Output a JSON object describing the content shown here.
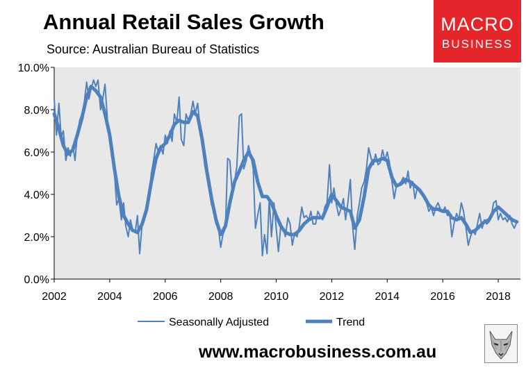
{
  "header": {
    "title": "Annual Retail Sales Growth",
    "subtitle": "Source: Australian Bureau of Statistics"
  },
  "logo": {
    "line1": "MACRO",
    "line2": "BUSINESS",
    "color": "#e4262b"
  },
  "footer": {
    "url": "www.macrobusiness.com.au",
    "emblem_icon": "wolf-icon"
  },
  "chart_data": {
    "type": "line",
    "title": "Annual Retail Sales Growth",
    "xlabel": "",
    "ylabel": "",
    "xlim": [
      2002,
      2018.8
    ],
    "ylim": [
      0,
      10
    ],
    "x_ticks": [
      "2002",
      "2004",
      "2006",
      "2008",
      "2010",
      "2012",
      "2014",
      "2016",
      "2018"
    ],
    "y_ticks": [
      "0.0%",
      "2.0%",
      "4.0%",
      "6.0%",
      "8.0%",
      "10.0%"
    ],
    "grid": false,
    "plot_background": "#e8e8e8",
    "legend": "bottom",
    "series": [
      {
        "name": "Seasonally Adjusted",
        "color": "#4f81bd",
        "line": "thin",
        "points": [
          [
            2002.0,
            8.5
          ],
          [
            2002.08,
            6.8
          ],
          [
            2002.17,
            8.3
          ],
          [
            2002.25,
            6.7
          ],
          [
            2002.33,
            7.0
          ],
          [
            2002.42,
            5.6
          ],
          [
            2002.5,
            6.2
          ],
          [
            2002.58,
            5.8
          ],
          [
            2002.67,
            6.3
          ],
          [
            2002.75,
            5.6
          ],
          [
            2002.83,
            6.8
          ],
          [
            2002.92,
            7.5
          ],
          [
            2003.0,
            7.8
          ],
          [
            2003.08,
            8.3
          ],
          [
            2003.17,
            9.3
          ],
          [
            2003.25,
            8.5
          ],
          [
            2003.33,
            9.0
          ],
          [
            2003.42,
            9.4
          ],
          [
            2003.5,
            9.1
          ],
          [
            2003.58,
            9.4
          ],
          [
            2003.67,
            8.0
          ],
          [
            2003.75,
            8.5
          ],
          [
            2003.83,
            9.2
          ],
          [
            2003.92,
            7.5
          ],
          [
            2004.0,
            7.0
          ],
          [
            2004.08,
            6.0
          ],
          [
            2004.17,
            5.0
          ],
          [
            2004.25,
            3.5
          ],
          [
            2004.33,
            3.8
          ],
          [
            2004.42,
            2.8
          ],
          [
            2004.5,
            3.6
          ],
          [
            2004.58,
            2.5
          ],
          [
            2004.67,
            2.0
          ],
          [
            2004.75,
            2.8
          ],
          [
            2004.83,
            2.3
          ],
          [
            2004.92,
            2.2
          ],
          [
            2005.0,
            3.0
          ],
          [
            2005.08,
            1.2
          ],
          [
            2005.17,
            2.6
          ],
          [
            2005.25,
            3.0
          ],
          [
            2005.33,
            3.2
          ],
          [
            2005.42,
            4.0
          ],
          [
            2005.5,
            5.0
          ],
          [
            2005.58,
            5.6
          ],
          [
            2005.67,
            6.4
          ],
          [
            2005.75,
            6.0
          ],
          [
            2005.83,
            6.3
          ],
          [
            2005.92,
            5.9
          ],
          [
            2006.0,
            6.8
          ],
          [
            2006.08,
            6.4
          ],
          [
            2006.17,
            7.0
          ],
          [
            2006.25,
            6.5
          ],
          [
            2006.33,
            7.8
          ],
          [
            2006.42,
            7.4
          ],
          [
            2006.5,
            8.6
          ],
          [
            2006.58,
            6.6
          ],
          [
            2006.67,
            6.3
          ],
          [
            2006.75,
            7.8
          ],
          [
            2006.83,
            7.5
          ],
          [
            2006.92,
            7.8
          ],
          [
            2007.0,
            8.4
          ],
          [
            2007.08,
            7.8
          ],
          [
            2007.17,
            8.3
          ],
          [
            2007.25,
            7.2
          ],
          [
            2007.33,
            6.6
          ],
          [
            2007.42,
            5.4
          ],
          [
            2007.5,
            4.8
          ],
          [
            2007.58,
            4.2
          ],
          [
            2007.67,
            3.5
          ],
          [
            2007.75,
            3.3
          ],
          [
            2007.83,
            2.6
          ],
          [
            2007.92,
            2.4
          ],
          [
            2008.0,
            1.5
          ],
          [
            2008.08,
            2.1
          ],
          [
            2008.17,
            2.4
          ],
          [
            2008.25,
            5.7
          ],
          [
            2008.33,
            5.6
          ],
          [
            2008.42,
            4.0
          ],
          [
            2008.5,
            4.6
          ],
          [
            2008.58,
            5.3
          ],
          [
            2008.67,
            7.7
          ],
          [
            2008.75,
            7.8
          ],
          [
            2008.83,
            5.2
          ],
          [
            2008.92,
            5.6
          ],
          [
            2009.0,
            6.3
          ],
          [
            2009.08,
            5.9
          ],
          [
            2009.17,
            5.2
          ],
          [
            2009.25,
            2.4
          ],
          [
            2009.33,
            3.0
          ],
          [
            2009.42,
            3.6
          ],
          [
            2009.5,
            1.1
          ],
          [
            2009.58,
            2.1
          ],
          [
            2009.67,
            1.2
          ],
          [
            2009.75,
            3.8
          ],
          [
            2009.83,
            2.0
          ],
          [
            2009.92,
            3.6
          ],
          [
            2010.0,
            2.4
          ],
          [
            2010.08,
            1.3
          ],
          [
            2010.17,
            2.6
          ],
          [
            2010.25,
            2.4
          ],
          [
            2010.33,
            2.0
          ],
          [
            2010.42,
            2.9
          ],
          [
            2010.5,
            2.6
          ],
          [
            2010.58,
            1.6
          ],
          [
            2010.67,
            2.2
          ],
          [
            2010.75,
            2.0
          ],
          [
            2010.83,
            2.5
          ],
          [
            2010.92,
            3.4
          ],
          [
            2011.0,
            2.9
          ],
          [
            2011.08,
            3.0
          ],
          [
            2011.17,
            2.8
          ],
          [
            2011.25,
            3.2
          ],
          [
            2011.33,
            2.6
          ],
          [
            2011.42,
            2.6
          ],
          [
            2011.5,
            3.2
          ],
          [
            2011.58,
            3.0
          ],
          [
            2011.67,
            2.8
          ],
          [
            2011.75,
            3.4
          ],
          [
            2011.83,
            3.6
          ],
          [
            2011.92,
            5.4
          ],
          [
            2012.0,
            3.6
          ],
          [
            2012.08,
            4.3
          ],
          [
            2012.17,
            3.5
          ],
          [
            2012.25,
            3.0
          ],
          [
            2012.33,
            3.3
          ],
          [
            2012.42,
            3.8
          ],
          [
            2012.5,
            2.8
          ],
          [
            2012.58,
            3.6
          ],
          [
            2012.67,
            4.7
          ],
          [
            2012.75,
            2.5
          ],
          [
            2012.83,
            1.4
          ],
          [
            2012.92,
            3.0
          ],
          [
            2013.0,
            3.6
          ],
          [
            2013.08,
            4.3
          ],
          [
            2013.17,
            4.6
          ],
          [
            2013.25,
            5.2
          ],
          [
            2013.33,
            6.2
          ],
          [
            2013.42,
            5.7
          ],
          [
            2013.5,
            5.4
          ],
          [
            2013.58,
            5.9
          ],
          [
            2013.67,
            5.4
          ],
          [
            2013.75,
            5.5
          ],
          [
            2013.83,
            6.1
          ],
          [
            2013.92,
            5.6
          ],
          [
            2014.0,
            6.0
          ],
          [
            2014.08,
            5.5
          ],
          [
            2014.17,
            4.6
          ],
          [
            2014.25,
            3.8
          ],
          [
            2014.33,
            4.4
          ],
          [
            2014.42,
            4.5
          ],
          [
            2014.5,
            4.6
          ],
          [
            2014.58,
            4.8
          ],
          [
            2014.67,
            4.5
          ],
          [
            2014.75,
            5.1
          ],
          [
            2014.83,
            4.3
          ],
          [
            2014.92,
            4.6
          ],
          [
            2015.0,
            3.8
          ],
          [
            2015.08,
            4.3
          ],
          [
            2015.17,
            4.1
          ],
          [
            2015.25,
            4.0
          ],
          [
            2015.33,
            3.8
          ],
          [
            2015.42,
            3.6
          ],
          [
            2015.5,
            3.2
          ],
          [
            2015.58,
            3.4
          ],
          [
            2015.67,
            3.0
          ],
          [
            2015.75,
            3.4
          ],
          [
            2015.83,
            3.6
          ],
          [
            2015.92,
            3.3
          ],
          [
            2016.0,
            3.2
          ],
          [
            2016.08,
            3.4
          ],
          [
            2016.17,
            3.0
          ],
          [
            2016.25,
            3.1
          ],
          [
            2016.33,
            2.0
          ],
          [
            2016.42,
            2.7
          ],
          [
            2016.5,
            3.1
          ],
          [
            2016.58,
            2.8
          ],
          [
            2016.67,
            3.6
          ],
          [
            2016.75,
            3.2
          ],
          [
            2016.83,
            2.5
          ],
          [
            2016.92,
            1.6
          ],
          [
            2017.0,
            2.0
          ],
          [
            2017.08,
            2.3
          ],
          [
            2017.17,
            2.1
          ],
          [
            2017.25,
            2.6
          ],
          [
            2017.33,
            3.1
          ],
          [
            2017.42,
            2.4
          ],
          [
            2017.5,
            2.8
          ],
          [
            2017.58,
            2.6
          ],
          [
            2017.67,
            2.7
          ],
          [
            2017.75,
            3.0
          ],
          [
            2017.83,
            3.6
          ],
          [
            2017.92,
            3.7
          ],
          [
            2018.0,
            2.8
          ],
          [
            2018.08,
            3.1
          ],
          [
            2018.17,
            2.8
          ],
          [
            2018.25,
            2.9
          ],
          [
            2018.33,
            2.7
          ],
          [
            2018.42,
            3.0
          ],
          [
            2018.5,
            2.6
          ],
          [
            2018.58,
            2.4
          ],
          [
            2018.67,
            2.7
          ]
        ]
      },
      {
        "name": "Trend",
        "color": "#4f81bd",
        "line": "thick",
        "points": [
          [
            2002.0,
            7.8
          ],
          [
            2002.17,
            7.1
          ],
          [
            2002.33,
            6.3
          ],
          [
            2002.5,
            5.9
          ],
          [
            2002.67,
            6.1
          ],
          [
            2002.83,
            6.8
          ],
          [
            2003.0,
            7.6
          ],
          [
            2003.17,
            8.6
          ],
          [
            2003.33,
            9.1
          ],
          [
            2003.5,
            8.9
          ],
          [
            2003.67,
            8.6
          ],
          [
            2003.83,
            7.8
          ],
          [
            2004.0,
            6.8
          ],
          [
            2004.17,
            5.2
          ],
          [
            2004.33,
            3.9
          ],
          [
            2004.5,
            3.0
          ],
          [
            2004.67,
            2.6
          ],
          [
            2004.83,
            2.3
          ],
          [
            2005.0,
            2.2
          ],
          [
            2005.17,
            2.6
          ],
          [
            2005.33,
            3.3
          ],
          [
            2005.5,
            4.6
          ],
          [
            2005.67,
            5.7
          ],
          [
            2005.83,
            6.2
          ],
          [
            2006.0,
            6.4
          ],
          [
            2006.17,
            6.8
          ],
          [
            2006.33,
            7.3
          ],
          [
            2006.5,
            7.5
          ],
          [
            2006.67,
            7.4
          ],
          [
            2006.83,
            7.4
          ],
          [
            2007.0,
            7.9
          ],
          [
            2007.17,
            7.7
          ],
          [
            2007.33,
            6.6
          ],
          [
            2007.5,
            5.1
          ],
          [
            2007.67,
            3.8
          ],
          [
            2007.83,
            2.8
          ],
          [
            2008.0,
            2.1
          ],
          [
            2008.17,
            2.5
          ],
          [
            2008.33,
            3.6
          ],
          [
            2008.5,
            4.6
          ],
          [
            2008.67,
            5.1
          ],
          [
            2008.83,
            5.6
          ],
          [
            2009.0,
            6.0
          ],
          [
            2009.17,
            5.6
          ],
          [
            2009.33,
            4.6
          ],
          [
            2009.5,
            3.9
          ],
          [
            2009.67,
            3.9
          ],
          [
            2009.83,
            3.6
          ],
          [
            2010.0,
            3.0
          ],
          [
            2010.17,
            2.5
          ],
          [
            2010.33,
            2.2
          ],
          [
            2010.5,
            2.1
          ],
          [
            2010.67,
            2.1
          ],
          [
            2010.83,
            2.3
          ],
          [
            2011.0,
            2.6
          ],
          [
            2011.17,
            2.8
          ],
          [
            2011.33,
            2.9
          ],
          [
            2011.5,
            2.9
          ],
          [
            2011.67,
            2.9
          ],
          [
            2011.83,
            3.4
          ],
          [
            2012.0,
            4.0
          ],
          [
            2012.17,
            3.7
          ],
          [
            2012.33,
            3.4
          ],
          [
            2012.5,
            3.3
          ],
          [
            2012.67,
            3.2
          ],
          [
            2012.83,
            2.4
          ],
          [
            2013.0,
            2.8
          ],
          [
            2013.17,
            3.9
          ],
          [
            2013.33,
            5.2
          ],
          [
            2013.5,
            5.6
          ],
          [
            2013.67,
            5.6
          ],
          [
            2013.83,
            5.7
          ],
          [
            2014.0,
            5.6
          ],
          [
            2014.17,
            4.8
          ],
          [
            2014.33,
            4.4
          ],
          [
            2014.5,
            4.5
          ],
          [
            2014.67,
            4.7
          ],
          [
            2014.83,
            4.6
          ],
          [
            2015.0,
            4.4
          ],
          [
            2015.17,
            4.2
          ],
          [
            2015.33,
            3.9
          ],
          [
            2015.5,
            3.5
          ],
          [
            2015.67,
            3.3
          ],
          [
            2015.83,
            3.3
          ],
          [
            2016.0,
            3.2
          ],
          [
            2016.17,
            3.2
          ],
          [
            2016.33,
            2.9
          ],
          [
            2016.5,
            2.8
          ],
          [
            2016.67,
            2.9
          ],
          [
            2016.83,
            2.6
          ],
          [
            2017.0,
            2.2
          ],
          [
            2017.17,
            2.3
          ],
          [
            2017.33,
            2.5
          ],
          [
            2017.5,
            2.7
          ],
          [
            2017.67,
            2.8
          ],
          [
            2017.83,
            3.2
          ],
          [
            2018.0,
            3.4
          ],
          [
            2018.17,
            3.2
          ],
          [
            2018.33,
            3.0
          ],
          [
            2018.5,
            2.8
          ],
          [
            2018.67,
            2.7
          ]
        ]
      }
    ]
  }
}
